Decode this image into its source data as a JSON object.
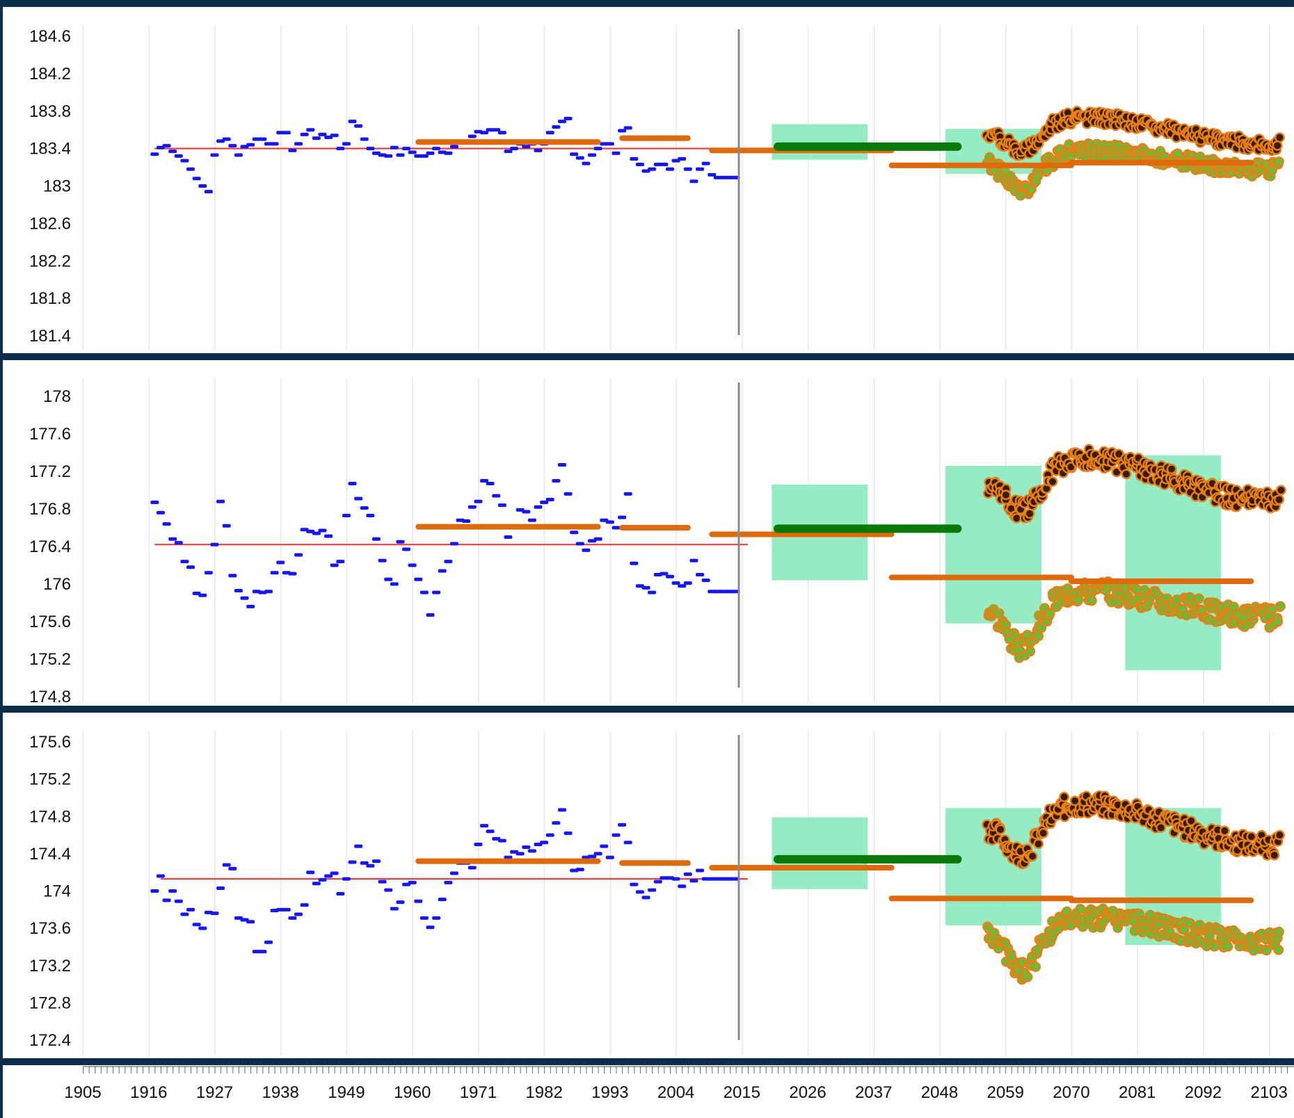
{
  "x_axis": {
    "ticks": [
      "1905",
      "1916",
      "1927",
      "1938",
      "1949",
      "1960",
      "1971",
      "1982",
      "1993",
      "2004",
      "2015",
      "2026",
      "2037",
      "2048",
      "2059",
      "2070",
      "2081",
      "2092",
      "2103"
    ],
    "range": [
      1905,
      2106
    ],
    "present_year": 2014.5
  },
  "colors": {
    "observed": "#1515ff",
    "baseline": "#ff2a2a",
    "period_mean": "#e06a0a",
    "projection_mean": "#087a08",
    "range_box": "#8eebbf",
    "high_scenario": "#e87f15",
    "high_scenario_core": "#3a1c06",
    "low_scenario": "#5fc23a",
    "divider": "#8a8a8a",
    "grid": "#e6e6e6"
  },
  "chart_data": [
    {
      "type": "scatter",
      "title": "",
      "ylabel": "",
      "yticks": [
        "184.6",
        "184.2",
        "183.8",
        "183.4",
        "183",
        "182.6",
        "182.2",
        "181.8",
        "181.4"
      ],
      "ylim": [
        181.35,
        184.75
      ],
      "baseline": {
        "x0": 1917,
        "x1": 2016,
        "y": 183.4
      },
      "observed": {
        "x": [
          1917,
          1918,
          1919,
          1920,
          1921,
          1922,
          1923,
          1924,
          1925,
          1926,
          1927,
          1928,
          1929,
          1930,
          1931,
          1932,
          1933,
          1934,
          1935,
          1936,
          1937,
          1938,
          1939,
          1940,
          1941,
          1942,
          1943,
          1944,
          1945,
          1946,
          1947,
          1948,
          1949,
          1950,
          1951,
          1952,
          1953,
          1954,
          1955,
          1956,
          1957,
          1958,
          1959,
          1960,
          1961,
          1962,
          1963,
          1964,
          1965,
          1966,
          1967,
          1968,
          1969,
          1970,
          1971,
          1972,
          1973,
          1974,
          1975,
          1976,
          1977,
          1978,
          1979,
          1980,
          1981,
          1982,
          1983,
          1984,
          1985,
          1986,
          1987,
          1988,
          1989,
          1990,
          1991,
          1992,
          1993,
          1994,
          1995,
          1996,
          1997,
          1998,
          1999,
          2000,
          2001,
          2002,
          2003,
          2004,
          2005,
          2006,
          2007,
          2008,
          2009,
          2010,
          2011,
          2012,
          2013,
          2014
        ],
        "y": [
          183.34,
          183.41,
          183.43,
          183.37,
          183.32,
          183.27,
          183.18,
          183.08,
          183.0,
          182.94,
          183.33,
          183.48,
          183.5,
          183.43,
          183.33,
          183.42,
          183.44,
          183.5,
          183.5,
          183.45,
          183.45,
          183.57,
          183.57,
          183.38,
          183.45,
          183.55,
          183.6,
          183.51,
          183.55,
          183.52,
          183.54,
          183.4,
          183.45,
          183.69,
          183.64,
          183.5,
          183.4,
          183.35,
          183.33,
          183.32,
          183.41,
          183.33,
          183.4,
          183.36,
          183.32,
          183.32,
          183.35,
          183.4,
          183.36,
          183.35,
          183.42,
          183.47,
          183.47,
          183.53,
          183.58,
          183.57,
          183.6,
          183.6,
          183.57,
          183.37,
          183.4,
          183.45,
          183.42,
          183.45,
          183.38,
          183.45,
          183.57,
          183.63,
          183.69,
          183.72,
          183.34,
          183.3,
          183.24,
          183.33,
          183.4,
          183.45,
          183.45,
          183.35,
          183.59,
          183.62,
          183.29,
          183.23,
          183.16,
          183.18,
          183.23,
          183.23,
          183.18,
          183.27,
          183.29,
          183.18,
          183.05,
          183.18,
          183.24,
          183.12,
          183.09,
          183.09,
          183.09,
          183.09
        ]
      },
      "period_means": [
        {
          "x0": 1961,
          "x1": 1991,
          "y": 183.47
        },
        {
          "x0": 1995,
          "x1": 2006,
          "y": 183.51
        },
        {
          "x0": 2010,
          "x1": 2040,
          "y": 183.38
        },
        {
          "x0": 2040,
          "x1": 2070,
          "y": 183.22
        },
        {
          "x0": 2070,
          "x1": 2100,
          "y": 183.25
        }
      ],
      "projection_mean": {
        "x0": 2021,
        "x1": 2051,
        "y": 183.42
      },
      "range_boxes": [
        {
          "x0": 2020,
          "x1": 2036,
          "y0": 183.28,
          "y1": 183.66
        },
        {
          "x0": 2049,
          "x1": 2065,
          "y0": 183.13,
          "y1": 183.61
        }
      ],
      "scenarios": [
        {
          "base": 183.25,
          "amp": 0.3,
          "seed": 1
        },
        {
          "base": 183.55,
          "amp": 0.26,
          "seed": 2
        }
      ]
    },
    {
      "type": "scatter",
      "title": "",
      "ylabel": "",
      "yticks": [
        "178",
        "177.6",
        "177.2",
        "176.8",
        "176.4",
        "176",
        "175.6",
        "175.2",
        "174.8"
      ],
      "ylim": [
        174.78,
        178.2
      ],
      "baseline": {
        "x0": 1917,
        "x1": 2016,
        "y": 176.42
      },
      "observed": {
        "x": [
          1917,
          1918,
          1919,
          1920,
          1921,
          1922,
          1923,
          1924,
          1925,
          1926,
          1927,
          1928,
          1929,
          1930,
          1931,
          1932,
          1933,
          1934,
          1935,
          1936,
          1937,
          1938,
          1939,
          1940,
          1941,
          1942,
          1943,
          1944,
          1945,
          1946,
          1947,
          1948,
          1949,
          1950,
          1951,
          1952,
          1953,
          1954,
          1955,
          1956,
          1957,
          1958,
          1959,
          1960,
          1961,
          1962,
          1963,
          1964,
          1965,
          1966,
          1967,
          1968,
          1969,
          1970,
          1971,
          1972,
          1973,
          1974,
          1975,
          1976,
          1977,
          1978,
          1979,
          1980,
          1981,
          1982,
          1983,
          1984,
          1985,
          1986,
          1987,
          1988,
          1989,
          1990,
          1991,
          1992,
          1993,
          1994,
          1995,
          1996,
          1997,
          1998,
          1999,
          2000,
          2001,
          2002,
          2003,
          2004,
          2005,
          2006,
          2007,
          2008,
          2009,
          2010,
          2011,
          2012,
          2013,
          2014
        ],
        "y": [
          176.87,
          176.76,
          176.64,
          176.48,
          176.44,
          176.24,
          176.18,
          175.9,
          175.88,
          176.12,
          176.42,
          176.88,
          176.62,
          176.09,
          175.93,
          175.85,
          175.76,
          175.92,
          175.91,
          175.92,
          176.12,
          176.23,
          176.12,
          176.11,
          176.31,
          176.58,
          176.56,
          176.54,
          176.57,
          176.51,
          176.2,
          176.24,
          176.73,
          177.07,
          176.91,
          176.81,
          176.73,
          176.48,
          176.25,
          176.05,
          176.0,
          176.45,
          176.37,
          176.2,
          176.05,
          175.91,
          175.67,
          175.91,
          176.14,
          176.24,
          176.43,
          176.68,
          176.67,
          176.82,
          176.88,
          177.1,
          177.07,
          176.94,
          176.84,
          176.5,
          176.6,
          176.79,
          176.77,
          176.68,
          176.82,
          176.87,
          176.9,
          177.1,
          177.27,
          176.96,
          176.55,
          176.43,
          176.36,
          176.46,
          176.48,
          176.68,
          176.66,
          176.6,
          176.71,
          176.96,
          176.22,
          175.98,
          175.96,
          175.91,
          176.1,
          176.11,
          176.08,
          176.01,
          175.98,
          176.01,
          176.25,
          176.1,
          176.04,
          175.92,
          175.92,
          175.92,
          175.92,
          175.92
        ]
      },
      "period_means": [
        {
          "x0": 1961,
          "x1": 1991,
          "y": 176.61
        },
        {
          "x0": 1995,
          "x1": 2006,
          "y": 176.6
        },
        {
          "x0": 2010,
          "x1": 2040,
          "y": 176.53
        },
        {
          "x0": 2040,
          "x1": 2070,
          "y": 176.07
        },
        {
          "x0": 2070,
          "x1": 2100,
          "y": 176.03
        }
      ],
      "projection_mean": {
        "x0": 2021,
        "x1": 2051,
        "y": 176.59
      },
      "range_boxes": [
        {
          "x0": 2020,
          "x1": 2036,
          "y0": 176.04,
          "y1": 177.06
        },
        {
          "x0": 2049,
          "x1": 2065,
          "y0": 175.58,
          "y1": 177.26
        },
        {
          "x0": 2079,
          "x1": 2095,
          "y0": 175.08,
          "y1": 177.37
        }
      ],
      "scenarios": [
        {
          "base": 175.75,
          "amp": 0.42,
          "seed": 3
        },
        {
          "base": 177.05,
          "amp": 0.4,
          "seed": 4
        }
      ]
    },
    {
      "type": "scatter",
      "title": "",
      "ylabel": "",
      "yticks": [
        "175.6",
        "175.2",
        "174.8",
        "174.4",
        "174",
        "173.6",
        "173.2",
        "172.8",
        "172.4"
      ],
      "ylim": [
        172.3,
        175.75
      ],
      "baseline": {
        "x0": 1918,
        "x1": 2016,
        "y": 174.13
      },
      "observed": {
        "x": [
          1917,
          1918,
          1919,
          1920,
          1921,
          1922,
          1923,
          1924,
          1925,
          1926,
          1927,
          1928,
          1929,
          1930,
          1931,
          1932,
          1933,
          1934,
          1935,
          1936,
          1937,
          1938,
          1939,
          1940,
          1941,
          1942,
          1943,
          1944,
          1945,
          1946,
          1947,
          1948,
          1949,
          1950,
          1951,
          1952,
          1953,
          1954,
          1955,
          1956,
          1957,
          1958,
          1959,
          1960,
          1961,
          1962,
          1963,
          1964,
          1965,
          1966,
          1967,
          1968,
          1969,
          1970,
          1971,
          1972,
          1973,
          1974,
          1975,
          1976,
          1977,
          1978,
          1979,
          1980,
          1981,
          1982,
          1983,
          1984,
          1985,
          1986,
          1987,
          1988,
          1989,
          1990,
          1991,
          1992,
          1993,
          1994,
          1995,
          1996,
          1997,
          1998,
          1999,
          2000,
          2001,
          2002,
          2003,
          2004,
          2005,
          2006,
          2007,
          2008,
          2009,
          2010,
          2011,
          2012,
          2013,
          2014
        ],
        "y": [
          174.0,
          174.16,
          173.9,
          174.0,
          173.89,
          173.75,
          173.8,
          173.64,
          173.6,
          173.77,
          173.76,
          174.03,
          174.28,
          174.24,
          173.71,
          173.69,
          173.67,
          173.35,
          173.35,
          173.45,
          173.79,
          173.8,
          173.8,
          173.71,
          173.75,
          173.85,
          174.2,
          174.08,
          174.12,
          174.16,
          174.19,
          173.97,
          174.13,
          174.31,
          174.48,
          174.3,
          174.27,
          174.32,
          174.1,
          174.01,
          173.81,
          173.88,
          174.07,
          174.09,
          173.89,
          173.71,
          173.61,
          173.71,
          173.91,
          174.09,
          174.19,
          174.3,
          174.3,
          174.25,
          174.5,
          174.7,
          174.64,
          174.56,
          174.54,
          174.36,
          174.42,
          174.4,
          174.47,
          174.43,
          174.5,
          174.52,
          174.6,
          174.73,
          174.87,
          174.62,
          174.22,
          174.23,
          174.36,
          174.37,
          174.4,
          174.48,
          174.36,
          174.6,
          174.71,
          174.52,
          174.07,
          173.99,
          173.93,
          174.01,
          174.1,
          174.14,
          174.14,
          174.13,
          174.05,
          174.18,
          174.11,
          174.22,
          174.13,
          174.13,
          174.13,
          174.13,
          174.13,
          174.13
        ]
      },
      "period_means": [
        {
          "x0": 1961,
          "x1": 1991,
          "y": 174.32
        },
        {
          "x0": 1995,
          "x1": 2006,
          "y": 174.3
        },
        {
          "x0": 2010,
          "x1": 2040,
          "y": 174.25
        },
        {
          "x0": 2040,
          "x1": 2070,
          "y": 173.92
        },
        {
          "x0": 2070,
          "x1": 2100,
          "y": 173.9
        }
      ],
      "projection_mean": {
        "x0": 2021,
        "x1": 2051,
        "y": 174.34
      },
      "range_boxes": [
        {
          "x0": 2020,
          "x1": 2036,
          "y0": 174.02,
          "y1": 174.79
        },
        {
          "x0": 2049,
          "x1": 2065,
          "y0": 173.63,
          "y1": 174.89
        },
        {
          "x0": 2079,
          "x1": 2095,
          "y0": 173.42,
          "y1": 174.89
        }
      ],
      "scenarios": [
        {
          "base": 173.55,
          "amp": 0.4,
          "seed": 5
        },
        {
          "base": 174.65,
          "amp": 0.4,
          "seed": 6
        }
      ]
    }
  ]
}
